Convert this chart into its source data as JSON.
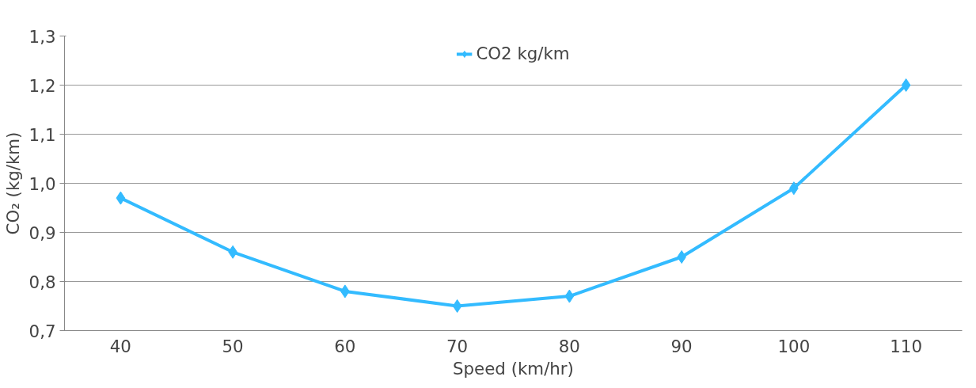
{
  "chart_data": {
    "type": "line",
    "xlabel": "Speed (km/hr)",
    "ylabel": "CO₂ (kg/km)",
    "categories": [
      "40",
      "50",
      "60",
      "70",
      "80",
      "90",
      "100",
      "110"
    ],
    "series": [
      {
        "name": "CO2 kg/km",
        "color": "#33bbff",
        "values": [
          0.97,
          0.86,
          0.78,
          0.75,
          0.77,
          0.85,
          0.99,
          1.2
        ]
      }
    ],
    "ylim": [
      0.7,
      1.3
    ],
    "yticks": [
      {
        "value": 0.7,
        "label": "0,7"
      },
      {
        "value": 0.8,
        "label": "0,8"
      },
      {
        "value": 0.9,
        "label": "0,9"
      },
      {
        "value": 1.0,
        "label": "1,0"
      },
      {
        "value": 1.1,
        "label": "1,1"
      },
      {
        "value": 1.2,
        "label": "1,2"
      },
      {
        "value": 1.3,
        "label": "1,3"
      }
    ],
    "grid": "y",
    "legend": "top",
    "marker": "diamond",
    "line_style": "solid"
  }
}
